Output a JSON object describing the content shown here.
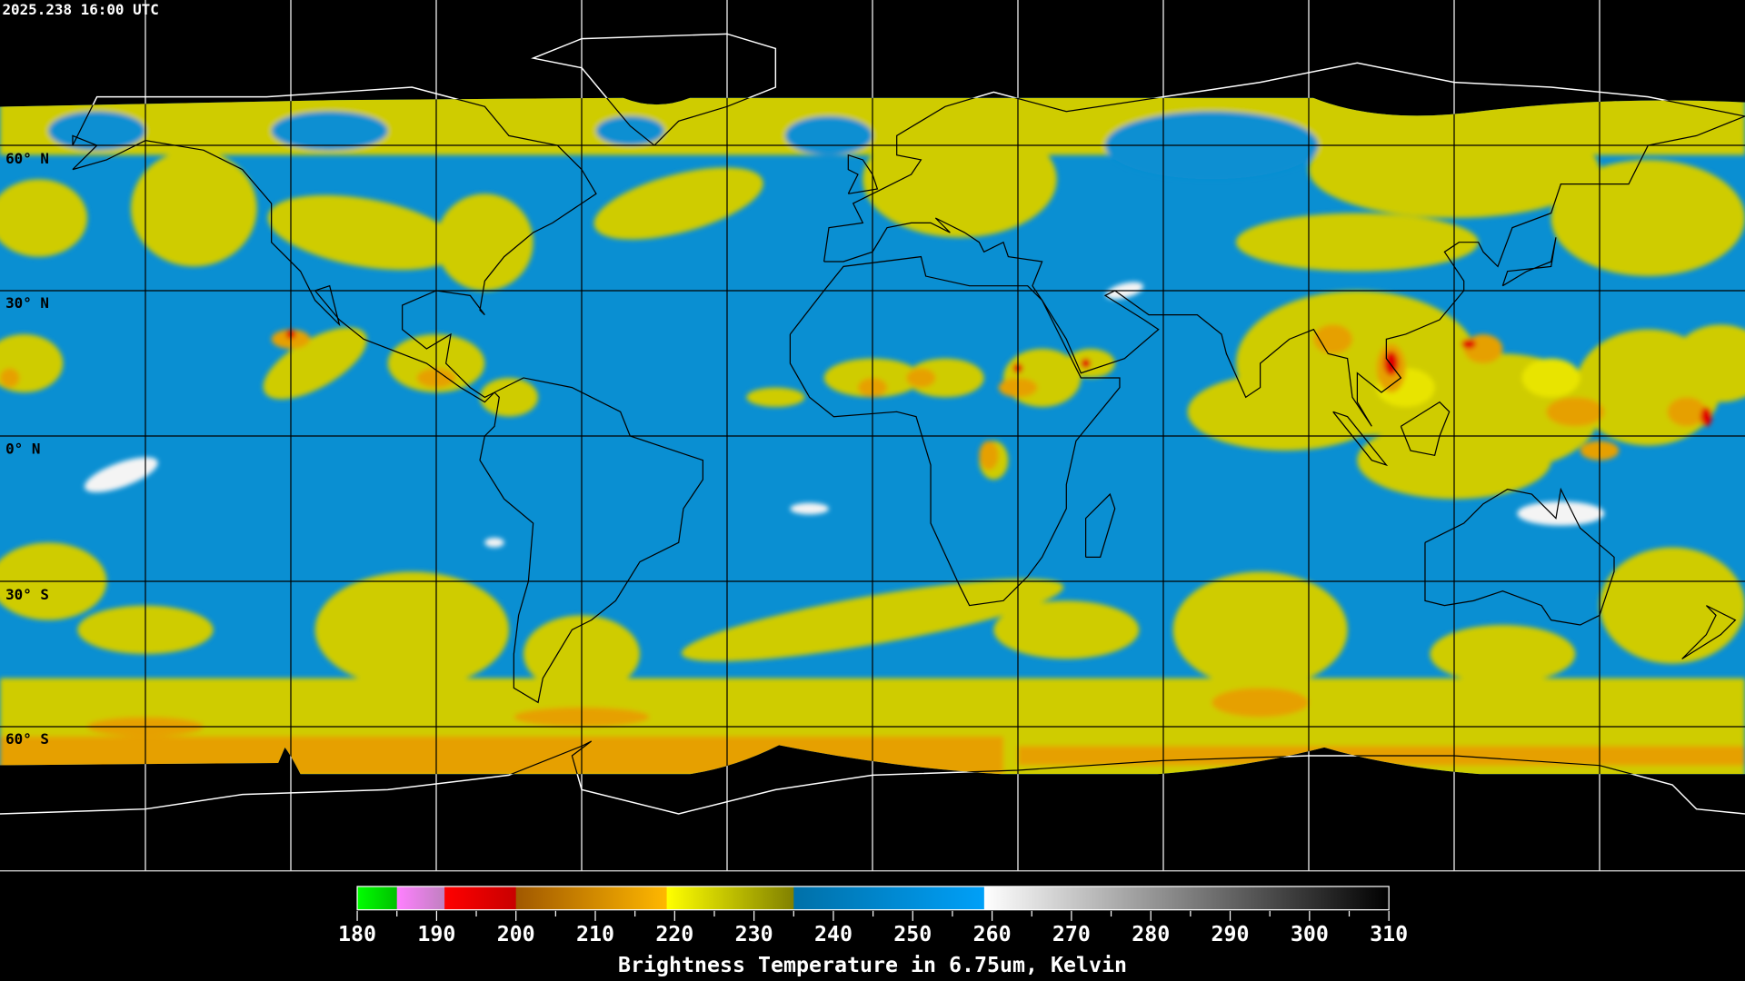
{
  "title": "2025.238 16:00 UTC",
  "lat_labels": [
    "60° N",
    "30° N",
    "0° N",
    "30° S",
    "60° S"
  ],
  "colorbar": {
    "title": "Brightness Temperature in 6.75um, Kelvin",
    "range": [
      180,
      310
    ],
    "tick_labels": [
      "180",
      "190",
      "200",
      "210",
      "220",
      "230",
      "240",
      "250",
      "260",
      "270",
      "280",
      "290",
      "300",
      "310"
    ],
    "minor_tick_step": 5,
    "segments": [
      {
        "from": 180,
        "to": 185,
        "colors": [
          "#00ff00",
          "#00c000"
        ]
      },
      {
        "from": 185,
        "to": 191,
        "colors": [
          "#ff80ff",
          "#c080c0"
        ]
      },
      {
        "from": 191,
        "to": 200,
        "colors": [
          "#ff0000",
          "#c80000"
        ]
      },
      {
        "from": 200,
        "to": 219,
        "colors": [
          "#a05800",
          "#ffb800"
        ]
      },
      {
        "from": 219,
        "to": 235,
        "colors": [
          "#ffff00",
          "#808000"
        ]
      },
      {
        "from": 235,
        "to": 259,
        "colors": [
          "#0070a8",
          "#00a0f8"
        ]
      },
      {
        "from": 259,
        "to": 310,
        "colors": [
          "#ffffff",
          "#000000"
        ]
      }
    ]
  },
  "colors": {
    "background": "#000000",
    "moist_blue": "#0a8fd2",
    "dry_yellow": "#cfcc00",
    "bright_yellow": "#e8e400",
    "orange": "#e6a000",
    "red": "#e00000",
    "white": "#f4f4f4"
  }
}
